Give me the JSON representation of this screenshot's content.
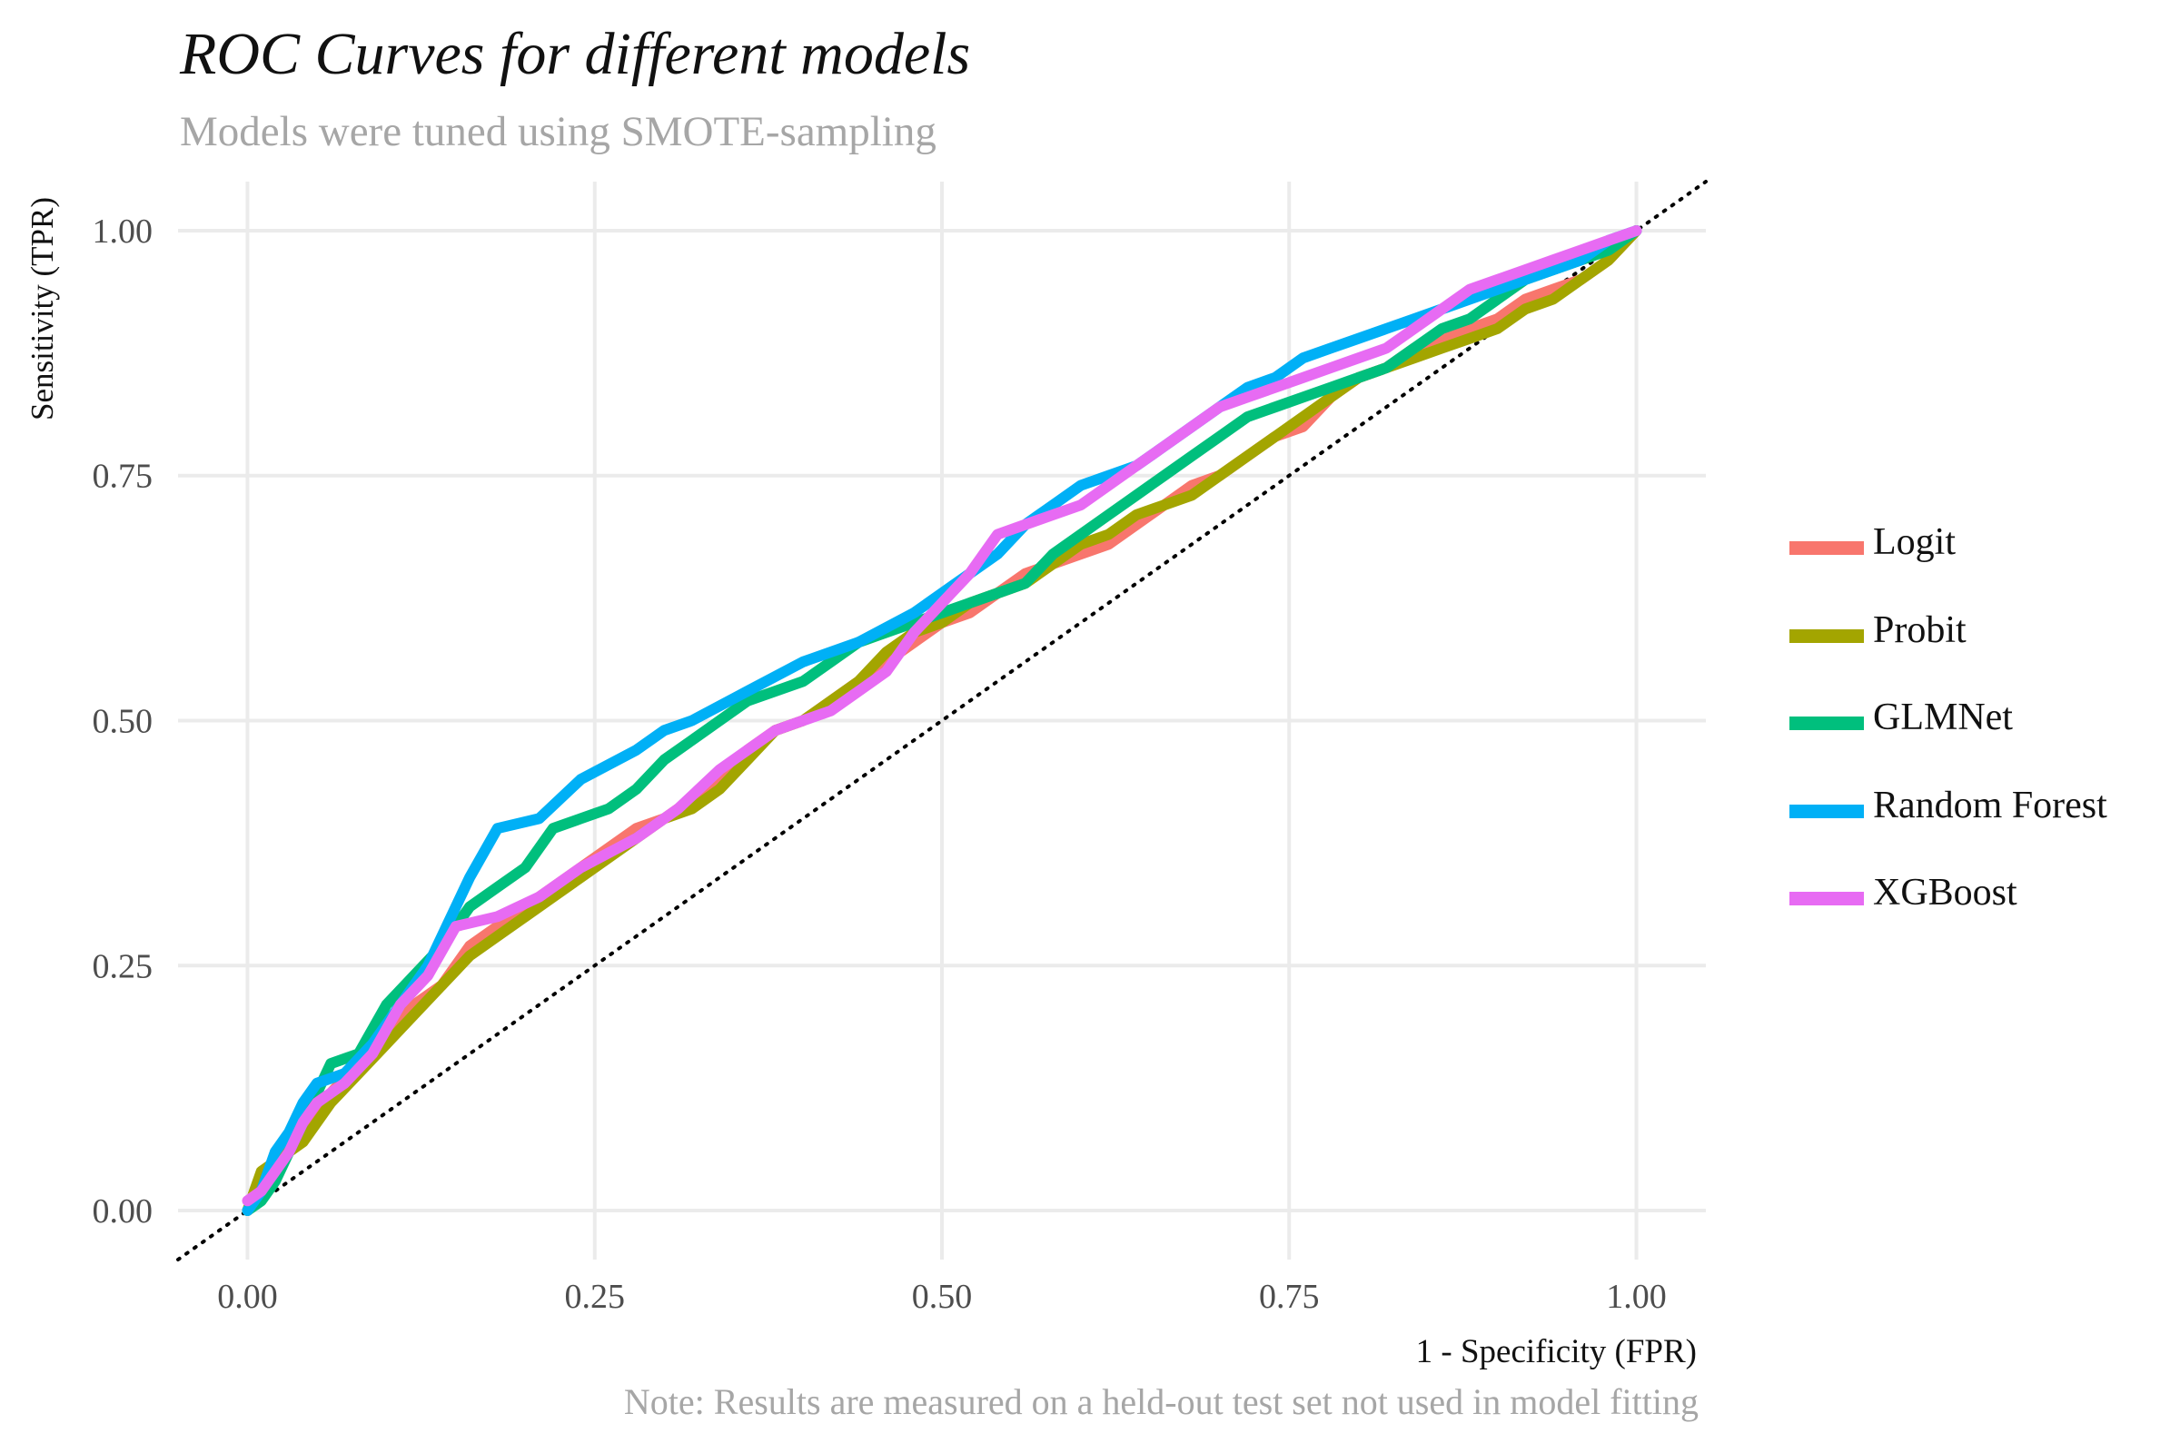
{
  "header": {
    "title": "ROC Curves for different models",
    "subtitle": "Models were tuned using SMOTE-sampling"
  },
  "footer": {
    "caption": "Note: Results are measured on a held-out test set not used in model fitting"
  },
  "colors": {
    "Logit": "#F8766D",
    "Probit": "#A3A500",
    "GLMNet": "#00BF7D",
    "Random Forest": "#00B0F6",
    "XGBoost": "#E76BF3",
    "grid": "#ebebeb",
    "reference_line": "#000000"
  },
  "chart_data": {
    "type": "line",
    "title": "ROC Curves for different models",
    "subtitle": "Models were tuned using SMOTE-sampling",
    "xlabel": "1 - Specificity (FPR)",
    "ylabel": "Sensitivity (TPR)",
    "xlim": [
      -0.05,
      1.05
    ],
    "ylim": [
      -0.05,
      1.05
    ],
    "x_ticks": [
      "0.00",
      "0.25",
      "0.50",
      "0.75",
      "1.00"
    ],
    "y_ticks": [
      "0.00",
      "0.25",
      "0.50",
      "0.75",
      "1.00"
    ],
    "grid": true,
    "legend_position": "right",
    "reference_line": {
      "style": "dotted",
      "slope": 1,
      "intercept": 0
    },
    "series": [
      {
        "name": "Logit",
        "x": [
          0.0,
          0.01,
          0.02,
          0.04,
          0.06,
          0.08,
          0.1,
          0.12,
          0.14,
          0.16,
          0.18,
          0.2,
          0.22,
          0.24,
          0.26,
          0.28,
          0.3,
          0.32,
          0.34,
          0.36,
          0.38,
          0.4,
          0.42,
          0.44,
          0.46,
          0.48,
          0.5,
          0.52,
          0.54,
          0.56,
          0.58,
          0.6,
          0.62,
          0.64,
          0.66,
          0.68,
          0.7,
          0.72,
          0.74,
          0.76,
          0.78,
          0.8,
          0.82,
          0.84,
          0.86,
          0.88,
          0.9,
          0.92,
          0.94,
          0.96,
          0.98,
          1.0
        ],
        "y": [
          0.0,
          0.03,
          0.05,
          0.08,
          0.12,
          0.15,
          0.18,
          0.21,
          0.23,
          0.27,
          0.29,
          0.31,
          0.33,
          0.35,
          0.37,
          0.39,
          0.4,
          0.42,
          0.44,
          0.47,
          0.49,
          0.5,
          0.52,
          0.54,
          0.56,
          0.58,
          0.6,
          0.61,
          0.63,
          0.65,
          0.66,
          0.67,
          0.68,
          0.7,
          0.72,
          0.74,
          0.75,
          0.77,
          0.79,
          0.8,
          0.83,
          0.85,
          0.86,
          0.88,
          0.89,
          0.9,
          0.91,
          0.93,
          0.94,
          0.95,
          0.97,
          1.0
        ]
      },
      {
        "name": "Probit",
        "x": [
          0.0,
          0.01,
          0.02,
          0.04,
          0.06,
          0.08,
          0.1,
          0.12,
          0.14,
          0.16,
          0.18,
          0.2,
          0.22,
          0.24,
          0.26,
          0.28,
          0.3,
          0.32,
          0.34,
          0.36,
          0.38,
          0.4,
          0.42,
          0.44,
          0.46,
          0.48,
          0.5,
          0.52,
          0.54,
          0.56,
          0.58,
          0.6,
          0.62,
          0.64,
          0.66,
          0.68,
          0.7,
          0.72,
          0.74,
          0.76,
          0.78,
          0.8,
          0.82,
          0.84,
          0.86,
          0.88,
          0.9,
          0.92,
          0.94,
          0.96,
          0.98,
          1.0
        ],
        "y": [
          0.0,
          0.04,
          0.05,
          0.07,
          0.11,
          0.14,
          0.17,
          0.2,
          0.23,
          0.26,
          0.28,
          0.3,
          0.32,
          0.34,
          0.36,
          0.38,
          0.4,
          0.41,
          0.43,
          0.46,
          0.49,
          0.5,
          0.52,
          0.54,
          0.57,
          0.59,
          0.6,
          0.62,
          0.63,
          0.64,
          0.66,
          0.68,
          0.69,
          0.71,
          0.72,
          0.73,
          0.75,
          0.77,
          0.79,
          0.81,
          0.83,
          0.85,
          0.86,
          0.87,
          0.88,
          0.89,
          0.9,
          0.92,
          0.93,
          0.95,
          0.97,
          1.0
        ]
      },
      {
        "name": "GLMNet",
        "x": [
          0.0,
          0.01,
          0.02,
          0.04,
          0.06,
          0.08,
          0.1,
          0.12,
          0.14,
          0.16,
          0.18,
          0.2,
          0.22,
          0.24,
          0.26,
          0.28,
          0.3,
          0.32,
          0.34,
          0.36,
          0.38,
          0.4,
          0.42,
          0.44,
          0.46,
          0.48,
          0.5,
          0.52,
          0.54,
          0.56,
          0.58,
          0.6,
          0.62,
          0.64,
          0.66,
          0.68,
          0.7,
          0.72,
          0.74,
          0.76,
          0.78,
          0.8,
          0.82,
          0.84,
          0.86,
          0.88,
          0.9,
          0.92,
          0.94,
          0.96,
          0.98,
          1.0
        ],
        "y": [
          0.0,
          0.01,
          0.03,
          0.09,
          0.15,
          0.16,
          0.21,
          0.24,
          0.27,
          0.31,
          0.33,
          0.35,
          0.39,
          0.4,
          0.41,
          0.43,
          0.46,
          0.48,
          0.5,
          0.52,
          0.53,
          0.54,
          0.56,
          0.58,
          0.59,
          0.6,
          0.61,
          0.62,
          0.63,
          0.64,
          0.67,
          0.69,
          0.71,
          0.73,
          0.75,
          0.77,
          0.79,
          0.81,
          0.82,
          0.83,
          0.84,
          0.85,
          0.86,
          0.88,
          0.9,
          0.91,
          0.93,
          0.95,
          0.96,
          0.97,
          0.98,
          1.0
        ]
      },
      {
        "name": "Random Forest",
        "x": [
          0.0,
          0.01,
          0.02,
          0.03,
          0.04,
          0.05,
          0.07,
          0.09,
          0.11,
          0.13,
          0.15,
          0.16,
          0.18,
          0.21,
          0.24,
          0.28,
          0.3,
          0.32,
          0.36,
          0.4,
          0.44,
          0.48,
          0.52,
          0.54,
          0.56,
          0.58,
          0.6,
          0.62,
          0.64,
          0.66,
          0.68,
          0.7,
          0.72,
          0.74,
          0.76,
          0.78,
          0.8,
          0.82,
          0.84,
          0.86,
          0.88,
          0.9,
          0.92,
          0.94,
          0.96,
          0.98,
          1.0
        ],
        "y": [
          0.0,
          0.02,
          0.06,
          0.08,
          0.11,
          0.13,
          0.14,
          0.17,
          0.21,
          0.25,
          0.31,
          0.34,
          0.39,
          0.4,
          0.44,
          0.47,
          0.49,
          0.5,
          0.53,
          0.56,
          0.58,
          0.61,
          0.65,
          0.67,
          0.7,
          0.72,
          0.74,
          0.75,
          0.76,
          0.78,
          0.8,
          0.82,
          0.84,
          0.85,
          0.87,
          0.88,
          0.89,
          0.9,
          0.91,
          0.92,
          0.93,
          0.94,
          0.95,
          0.96,
          0.97,
          0.99,
          1.0
        ]
      },
      {
        "name": "XGBoost",
        "x": [
          0.0,
          0.01,
          0.02,
          0.03,
          0.04,
          0.05,
          0.07,
          0.09,
          0.11,
          0.13,
          0.15,
          0.18,
          0.21,
          0.24,
          0.28,
          0.31,
          0.34,
          0.38,
          0.42,
          0.44,
          0.46,
          0.48,
          0.5,
          0.52,
          0.54,
          0.56,
          0.58,
          0.6,
          0.62,
          0.64,
          0.66,
          0.68,
          0.7,
          0.72,
          0.74,
          0.76,
          0.78,
          0.8,
          0.82,
          0.84,
          0.86,
          0.88,
          0.9,
          0.92,
          0.94,
          0.96,
          0.98,
          1.0
        ],
        "y": [
          0.01,
          0.02,
          0.04,
          0.06,
          0.09,
          0.11,
          0.13,
          0.16,
          0.21,
          0.24,
          0.29,
          0.3,
          0.32,
          0.35,
          0.38,
          0.41,
          0.45,
          0.49,
          0.51,
          0.53,
          0.55,
          0.59,
          0.62,
          0.65,
          0.69,
          0.7,
          0.71,
          0.72,
          0.74,
          0.76,
          0.78,
          0.8,
          0.82,
          0.83,
          0.84,
          0.85,
          0.86,
          0.87,
          0.88,
          0.9,
          0.92,
          0.94,
          0.95,
          0.96,
          0.97,
          0.98,
          0.99,
          1.0
        ]
      }
    ]
  }
}
